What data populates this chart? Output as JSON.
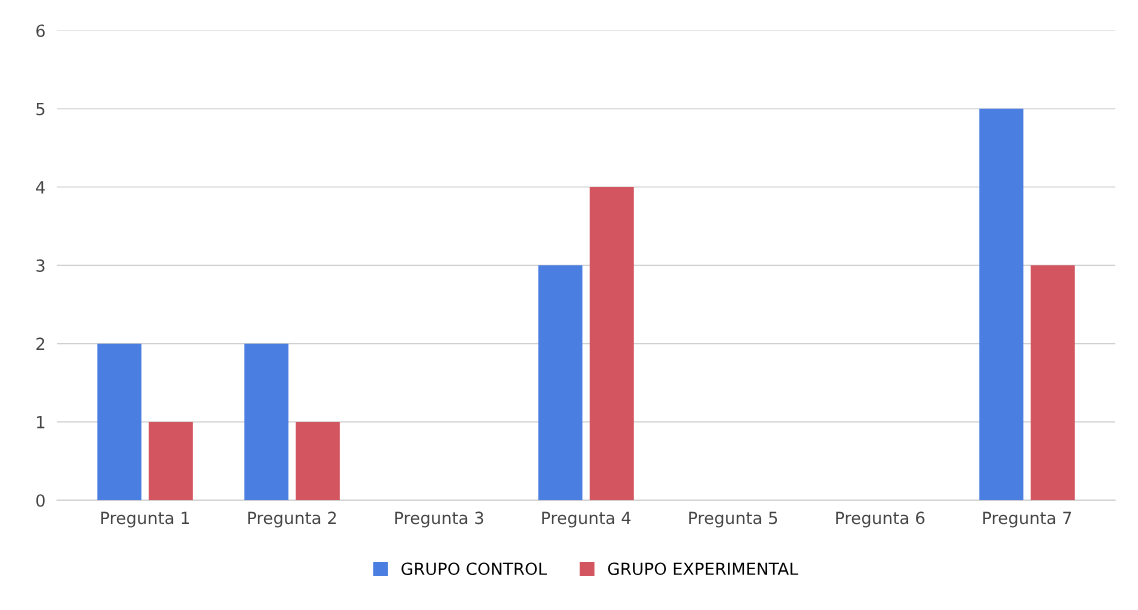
{
  "chart_data": {
    "type": "bar",
    "categories": [
      "Pregunta 1",
      "Pregunta 2",
      "Pregunta 3",
      "Pregunta 4",
      "Pregunta 5",
      "Pregunta 6",
      "Pregunta 7"
    ],
    "series": [
      {
        "name": "GRUPO CONTROL",
        "color": "#4a7ee0",
        "values": [
          2,
          2,
          0,
          3,
          0,
          0,
          5
        ]
      },
      {
        "name": "GRUPO EXPERIMENTAL",
        "color": "#d2555f",
        "values": [
          1,
          1,
          0,
          4,
          0,
          0,
          3
        ]
      }
    ],
    "ylim": [
      0,
      6
    ],
    "yticks": [
      0,
      1,
      2,
      3,
      4,
      5,
      6
    ],
    "grid": "y",
    "legend": "bottom"
  }
}
